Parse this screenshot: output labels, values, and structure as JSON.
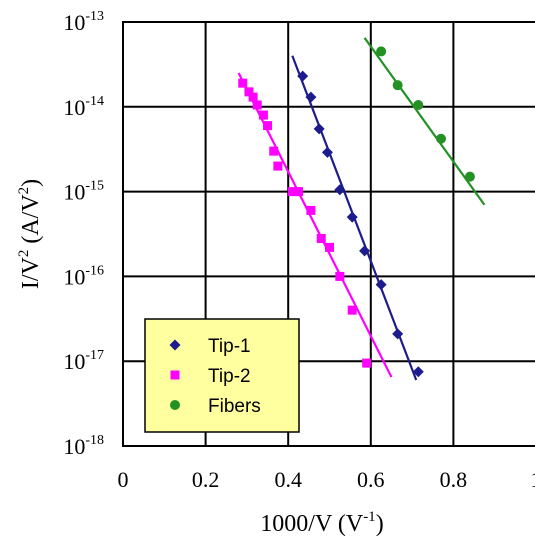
{
  "chart_data": {
    "type": "scatter",
    "y_scale": "log",
    "grid": true,
    "legend_position": "bottom-left",
    "xlabel": {
      "base": "1000/V  (V",
      "sup": "-1",
      "tail": ")"
    },
    "ylabel": {
      "p1": "I/V",
      "s1": "2",
      "p2": "  (A/V",
      "s2": "2",
      "p3": ")"
    },
    "xlim": [
      0,
      1.0
    ],
    "ylim": [
      1e-18,
      1e-13
    ],
    "x_ticks": [
      {
        "value": 0,
        "label": "0"
      },
      {
        "value": 0.2,
        "label": "0.2"
      },
      {
        "value": 0.4,
        "label": "0.4"
      },
      {
        "value": 0.6,
        "label": "0.6"
      },
      {
        "value": 0.8,
        "label": "0.8"
      },
      {
        "value": 1.0,
        "label": "1"
      }
    ],
    "y_ticks": [
      {
        "value": 1e-13,
        "base": "10",
        "exp": "-13"
      },
      {
        "value": 1e-14,
        "base": "10",
        "exp": "-14"
      },
      {
        "value": 1e-15,
        "base": "10",
        "exp": "-15"
      },
      {
        "value": 1e-16,
        "base": "10",
        "exp": "-16"
      },
      {
        "value": 1e-17,
        "base": "10",
        "exp": "-17"
      },
      {
        "value": 1e-18,
        "base": "10",
        "exp": "-18"
      }
    ],
    "series": [
      {
        "name": "Tip-1",
        "marker": "diamond",
        "color": "#1c1c8c",
        "points": [
          [
            0.435,
            2.3e-14
          ],
          [
            0.455,
            1.3e-14
          ],
          [
            0.475,
            5.5e-15
          ],
          [
            0.495,
            2.9e-15
          ],
          [
            0.525,
            1.05e-15
          ],
          [
            0.555,
            5e-16
          ],
          [
            0.585,
            2e-16
          ],
          [
            0.625,
            8e-17
          ],
          [
            0.665,
            2.1e-17
          ],
          [
            0.715,
            7.5e-18
          ]
        ],
        "fit": [
          [
            0.41,
            4e-14
          ],
          [
            0.71,
            6e-18
          ]
        ]
      },
      {
        "name": "Tip-2",
        "marker": "square",
        "color": "#ff00ff",
        "points": [
          [
            0.29,
            1.9e-14
          ],
          [
            0.305,
            1.5e-14
          ],
          [
            0.315,
            1.3e-14
          ],
          [
            0.325,
            1.05e-14
          ],
          [
            0.34,
            8e-15
          ],
          [
            0.35,
            6e-15
          ],
          [
            0.365,
            3e-15
          ],
          [
            0.375,
            2e-15
          ],
          [
            0.41,
            1e-15
          ],
          [
            0.425,
            1e-15
          ],
          [
            0.455,
            6e-16
          ],
          [
            0.48,
            2.8e-16
          ],
          [
            0.5,
            2.2e-16
          ],
          [
            0.525,
            1e-16
          ],
          [
            0.555,
            4e-17
          ],
          [
            0.59,
            9.5e-18
          ]
        ],
        "fit": [
          [
            0.28,
            2.5e-14
          ],
          [
            0.65,
            6.5e-18
          ]
        ]
      },
      {
        "name": "Fibers",
        "marker": "circle",
        "color": "#239123",
        "points": [
          [
            0.625,
            4.5e-14
          ],
          [
            0.665,
            1.8e-14
          ],
          [
            0.715,
            1.05e-14
          ],
          [
            0.77,
            4.2e-15
          ],
          [
            0.84,
            1.5e-15
          ]
        ],
        "fit": [
          [
            0.585,
            6.5e-14
          ],
          [
            0.875,
            7e-16
          ]
        ]
      }
    ]
  }
}
